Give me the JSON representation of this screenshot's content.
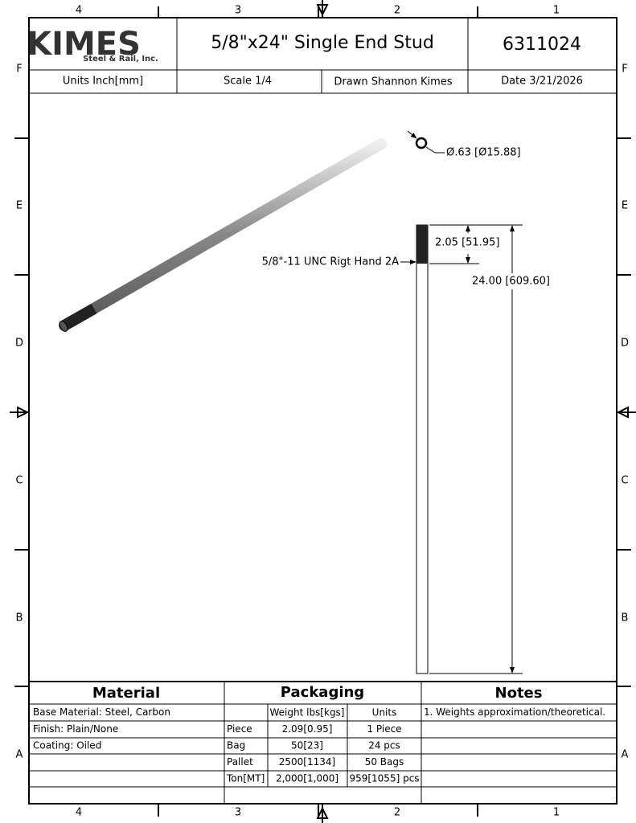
{
  "border": {
    "columns": [
      "4",
      "3",
      "2",
      "1"
    ],
    "rows": [
      "F",
      "E",
      "D",
      "C",
      "B",
      "A"
    ]
  },
  "header": {
    "logo_main": "KIMES",
    "logo_sub": "Steel & Rail, Inc.",
    "title": "5/8\"x24\" Single End Stud",
    "part_number": "6311024",
    "units": "Units Inch[mm]",
    "scale": "Scale 1/4",
    "drawn": "Drawn Shannon Kimes",
    "date": "Date 3/21/2026"
  },
  "drawing": {
    "diameter": "Ø.63 [Ø15.88]",
    "thread_length": "2.05 [51.95]",
    "total_length": "24.00 [609.60]",
    "thread_note": "5/8\"-11 UNC Rigt Hand 2A"
  },
  "table": {
    "material": {
      "title": "Material",
      "rows": [
        "Base Material: Steel, Carbon",
        "Finish: Plain/None",
        "Coating: Oiled"
      ]
    },
    "packaging": {
      "title": "Packaging",
      "columns": [
        "Weight lbs[kgs]",
        "Units"
      ],
      "rows": [
        [
          "Piece",
          "2.09[0.95]",
          "1 Piece"
        ],
        [
          "Bag",
          "50[23]",
          "24 pcs"
        ],
        [
          "Pallet",
          "2500[1134]",
          "50 Bags"
        ],
        [
          "Ton[MT]",
          "2,000[1,000]",
          "959[1055] pcs"
        ]
      ]
    },
    "notes": {
      "title": "Notes",
      "rows": [
        "1. Weights approximation/theoretical."
      ]
    }
  }
}
